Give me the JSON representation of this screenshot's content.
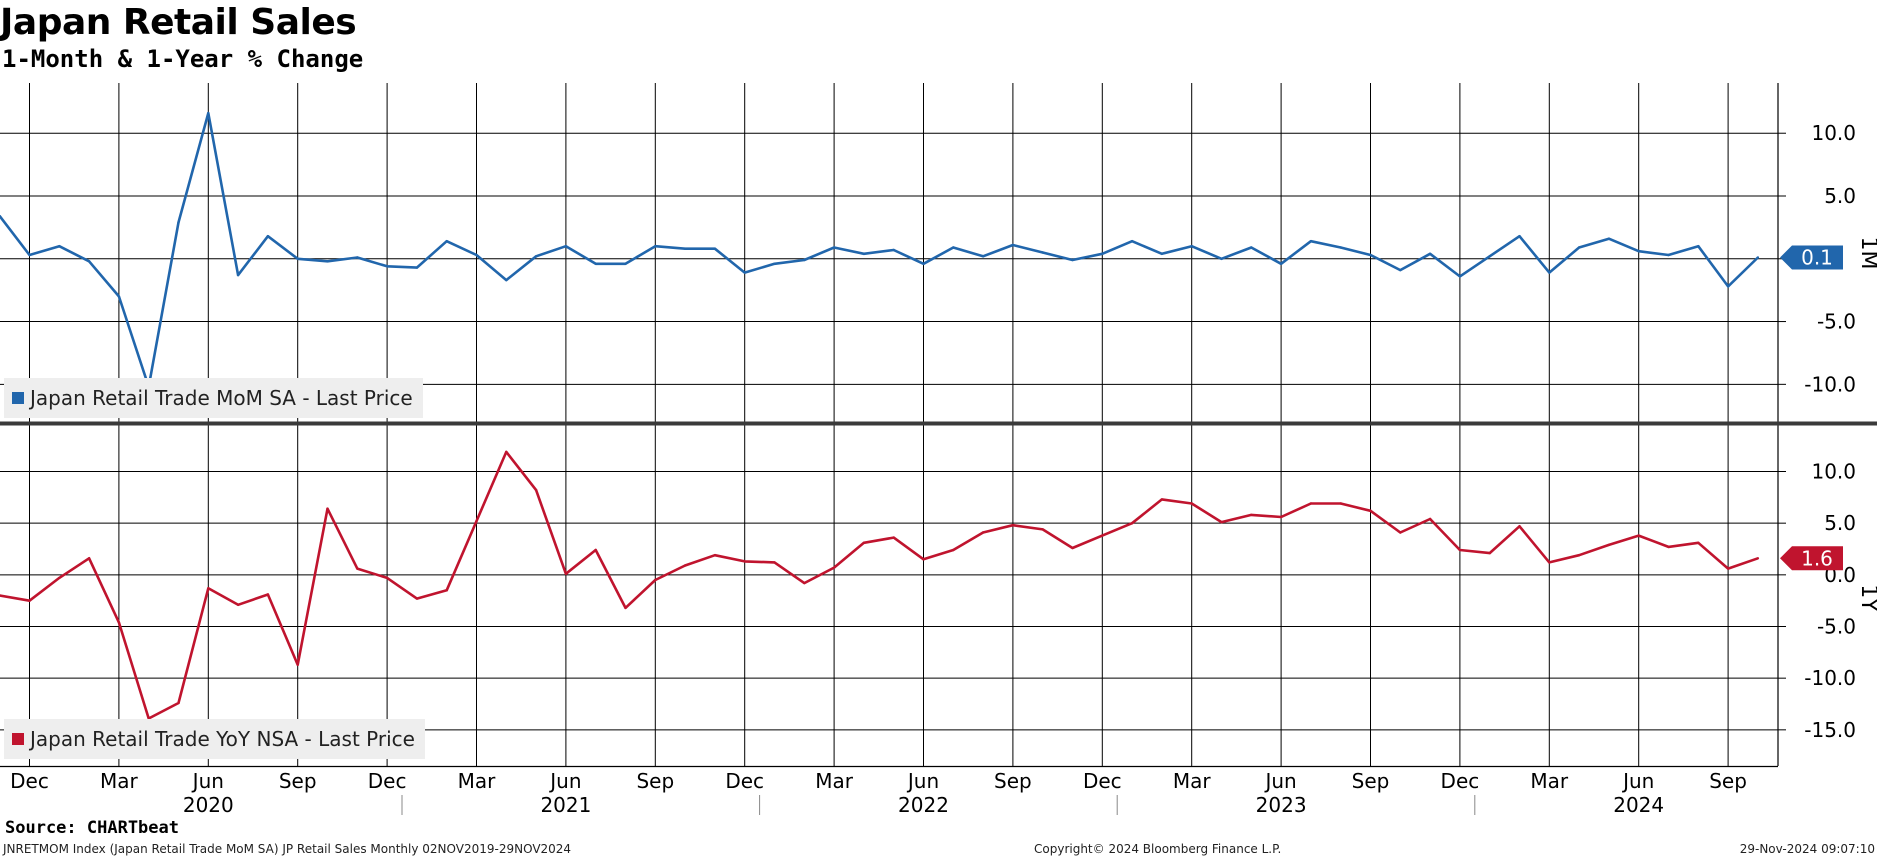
{
  "title": "Japan Retail Sales",
  "subtitle": "1-Month & 1-Year % Change",
  "source": "Source: CHARTbeat",
  "footnote": "JNRETMOM Index (Japan Retail Trade MoM SA) JP Retail Sales  Monthly 02NOV2019-29NOV2024",
  "copyright": "Copyright© 2024 Bloomberg Finance L.P.",
  "timestamp": "29-Nov-2024 09:07:10",
  "chart_data": [
    {
      "type": "line",
      "panel": "top",
      "panel_label": "1M",
      "legend": "Japan Retail Trade MoM SA - Last Price",
      "last_value_label": "0.1",
      "color": "#2166ac",
      "ylim": [
        -13,
        14
      ],
      "yticks": [
        10,
        5,
        0,
        -5,
        -10
      ],
      "ytick_labels": [
        "10.0",
        "5.0",
        "",
        "-5.0",
        "-10.0"
      ],
      "x": [
        "2019-11",
        "2019-12",
        "2020-01",
        "2020-02",
        "2020-03",
        "2020-04",
        "2020-05",
        "2020-06",
        "2020-07",
        "2020-08",
        "2020-09",
        "2020-10",
        "2020-11",
        "2020-12",
        "2021-01",
        "2021-02",
        "2021-03",
        "2021-04",
        "2021-05",
        "2021-06",
        "2021-07",
        "2021-08",
        "2021-09",
        "2021-10",
        "2021-11",
        "2021-12",
        "2022-01",
        "2022-02",
        "2022-03",
        "2022-04",
        "2022-05",
        "2022-06",
        "2022-07",
        "2022-08",
        "2022-09",
        "2022-10",
        "2022-11",
        "2022-12",
        "2023-01",
        "2023-02",
        "2023-03",
        "2023-04",
        "2023-05",
        "2023-06",
        "2023-07",
        "2023-08",
        "2023-09",
        "2023-10",
        "2023-11",
        "2023-12",
        "2024-01",
        "2024-02",
        "2024-03",
        "2024-04",
        "2024-05",
        "2024-06",
        "2024-07",
        "2024-08",
        "2024-09",
        "2024-10"
      ],
      "values": [
        3.4,
        0.3,
        1.0,
        -0.2,
        -3.0,
        -10.2,
        2.9,
        11.6,
        -1.3,
        1.8,
        0.0,
        -0.2,
        0.1,
        -0.6,
        -0.7,
        1.4,
        0.3,
        -1.7,
        0.2,
        1.0,
        -0.4,
        -0.4,
        1.0,
        0.8,
        0.8,
        -1.1,
        -0.4,
        -0.1,
        0.9,
        0.4,
        0.7,
        -0.4,
        0.9,
        0.2,
        1.1,
        0.5,
        -0.1,
        0.4,
        1.4,
        0.4,
        1.0,
        0.0,
        0.9,
        -0.4,
        1.4,
        0.9,
        0.3,
        -0.9,
        0.4,
        -1.4,
        0.2,
        1.8,
        -1.1,
        0.9,
        1.6,
        0.6,
        0.3,
        1.0,
        -2.2,
        0.1
      ]
    },
    {
      "type": "line",
      "panel": "bottom",
      "panel_label": "1Y",
      "legend": "Japan Retail Trade YoY NSA - Last Price",
      "last_value_label": "1.6",
      "color": "#c0142e",
      "ylim": [
        -18.5,
        14.5
      ],
      "yticks": [
        10,
        5,
        0,
        -5,
        -10,
        -15
      ],
      "ytick_labels": [
        "10.0",
        "5.0",
        "0.0",
        "-5.0",
        "-10.0",
        "-15.0"
      ],
      "x": [
        "2019-11",
        "2019-12",
        "2020-01",
        "2020-02",
        "2020-03",
        "2020-04",
        "2020-05",
        "2020-06",
        "2020-07",
        "2020-08",
        "2020-09",
        "2020-10",
        "2020-11",
        "2020-12",
        "2021-01",
        "2021-02",
        "2021-03",
        "2021-04",
        "2021-05",
        "2021-06",
        "2021-07",
        "2021-08",
        "2021-09",
        "2021-10",
        "2021-11",
        "2021-12",
        "2022-01",
        "2022-02",
        "2022-03",
        "2022-04",
        "2022-05",
        "2022-06",
        "2022-07",
        "2022-08",
        "2022-09",
        "2022-10",
        "2022-11",
        "2022-12",
        "2023-01",
        "2023-02",
        "2023-03",
        "2023-04",
        "2023-05",
        "2023-06",
        "2023-07",
        "2023-08",
        "2023-09",
        "2023-10",
        "2023-11",
        "2023-12",
        "2024-01",
        "2024-02",
        "2024-03",
        "2024-04",
        "2024-05",
        "2024-06",
        "2024-07",
        "2024-08",
        "2024-09",
        "2024-10"
      ],
      "values": [
        -2.0,
        -2.5,
        -0.3,
        1.6,
        -4.6,
        -13.9,
        -12.4,
        -1.3,
        -2.9,
        -1.9,
        -8.7,
        6.4,
        0.6,
        -0.3,
        -2.3,
        -1.5,
        5.2,
        11.9,
        8.2,
        0.1,
        2.4,
        -3.2,
        -0.5,
        0.9,
        1.9,
        1.3,
        1.2,
        -0.8,
        0.7,
        3.1,
        3.6,
        1.5,
        2.4,
        4.1,
        4.8,
        4.4,
        2.6,
        3.8,
        5.0,
        7.3,
        6.9,
        5.1,
        5.8,
        5.6,
        6.9,
        6.9,
        6.2,
        4.1,
        5.4,
        2.4,
        2.1,
        4.7,
        1.2,
        1.9,
        2.9,
        3.8,
        2.7,
        3.1,
        0.6,
        1.6
      ]
    }
  ],
  "x_axis": {
    "month_ticks": [
      {
        "ym": "2019-12",
        "label": "Dec"
      },
      {
        "ym": "2020-03",
        "label": "Mar"
      },
      {
        "ym": "2020-06",
        "label": "Jun"
      },
      {
        "ym": "2020-09",
        "label": "Sep"
      },
      {
        "ym": "2020-12",
        "label": "Dec"
      },
      {
        "ym": "2021-03",
        "label": "Mar"
      },
      {
        "ym": "2021-06",
        "label": "Jun"
      },
      {
        "ym": "2021-09",
        "label": "Sep"
      },
      {
        "ym": "2021-12",
        "label": "Dec"
      },
      {
        "ym": "2022-03",
        "label": "Mar"
      },
      {
        "ym": "2022-06",
        "label": "Jun"
      },
      {
        "ym": "2022-09",
        "label": "Sep"
      },
      {
        "ym": "2022-12",
        "label": "Dec"
      },
      {
        "ym": "2023-03",
        "label": "Mar"
      },
      {
        "ym": "2023-06",
        "label": "Jun"
      },
      {
        "ym": "2023-09",
        "label": "Sep"
      },
      {
        "ym": "2023-12",
        "label": "Dec"
      },
      {
        "ym": "2024-03",
        "label": "Mar"
      },
      {
        "ym": "2024-06",
        "label": "Jun"
      },
      {
        "ym": "2024-09",
        "label": "Sep"
      }
    ],
    "year_labels": [
      {
        "ym": "2020-06",
        "label": "2020"
      },
      {
        "ym": "2021-06",
        "label": "2021"
      },
      {
        "ym": "2022-06",
        "label": "2022"
      },
      {
        "ym": "2023-06",
        "label": "2023"
      },
      {
        "ym": "2024-06",
        "label": "2024"
      }
    ],
    "year_boundaries": [
      "2020-12",
      "2021-12",
      "2022-12",
      "2023-12"
    ]
  }
}
